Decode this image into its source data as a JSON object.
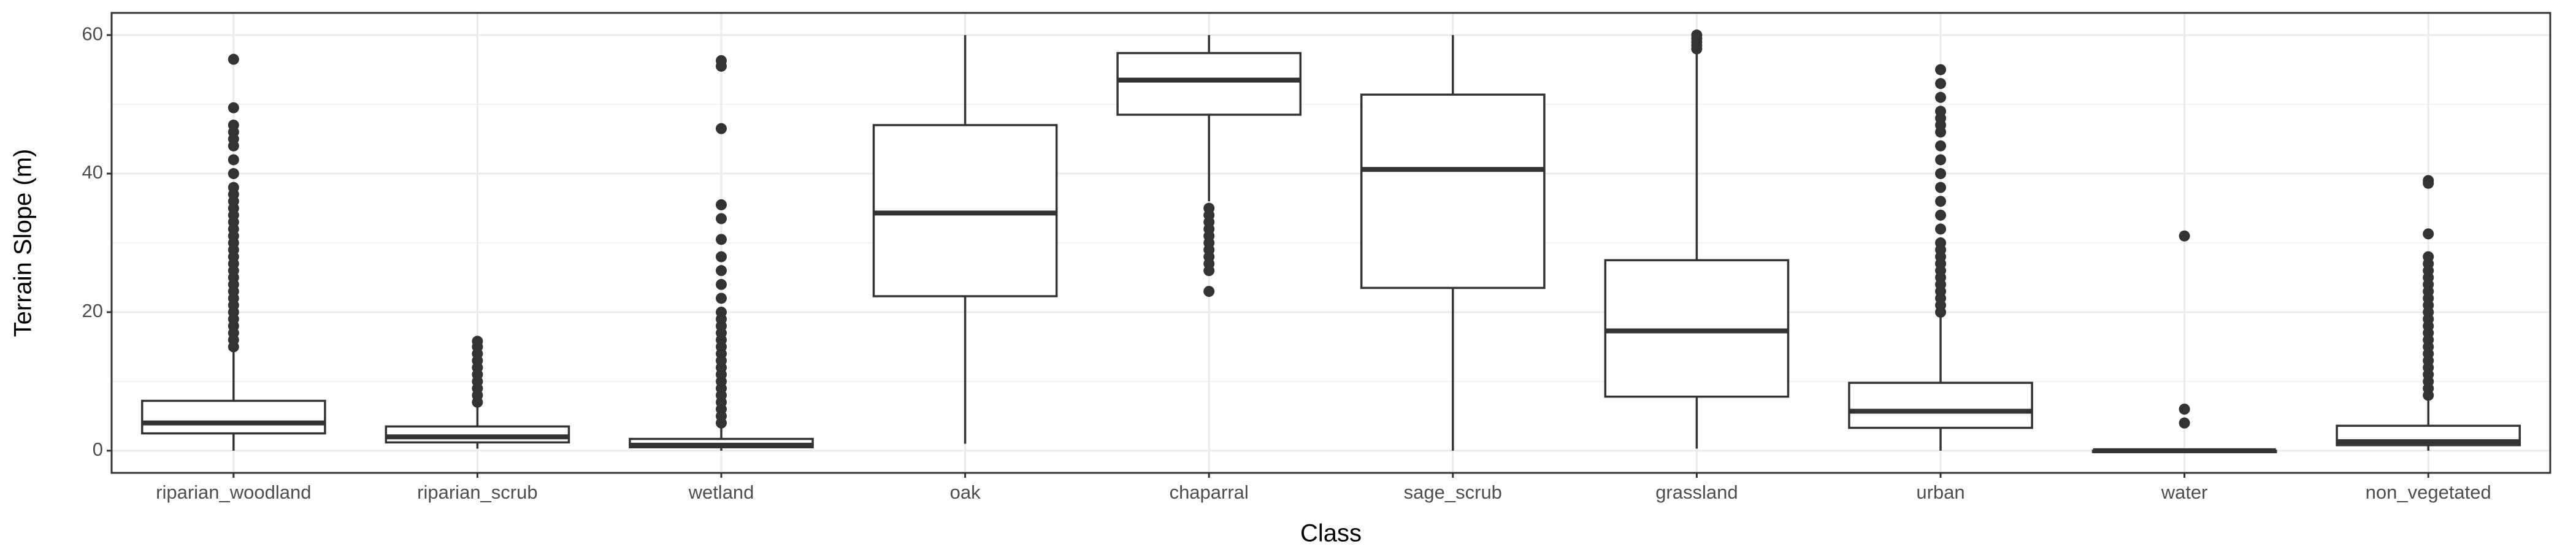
{
  "chart_data": {
    "type": "box",
    "x_label": "Class",
    "y_label": "Terrain Slope (m)",
    "categories": [
      "riparian_woodland",
      "riparian_scrub",
      "wetland",
      "oak",
      "chaparral",
      "sage_scrub",
      "grassland",
      "urban",
      "water",
      "non_vegetated"
    ],
    "boxes": [
      {
        "whislo": 0,
        "q1": 2.5,
        "med": 4,
        "q3": 7.2,
        "whishi": 14.5,
        "fliers": [
          15,
          16,
          17,
          18,
          19,
          20,
          21,
          22,
          23,
          24,
          25,
          26,
          27,
          28,
          29,
          30,
          31,
          32,
          33,
          34,
          35,
          36,
          37,
          38,
          40,
          42,
          44,
          45,
          46,
          47,
          49.5,
          56.5
        ]
      },
      {
        "whislo": 0.3,
        "q1": 1.2,
        "med": 2,
        "q3": 3.5,
        "whishi": 6.8,
        "fliers": [
          7,
          8,
          9,
          10,
          11,
          12,
          13,
          14,
          15,
          15.8
        ]
      },
      {
        "whislo": 0,
        "q1": 0.5,
        "med": 0.8,
        "q3": 1.7,
        "whishi": 3.5,
        "fliers": [
          4,
          5,
          6,
          7,
          8,
          9,
          10,
          11,
          12,
          13,
          14,
          15,
          16,
          17,
          18,
          19,
          20,
          22,
          24,
          26,
          28,
          30.5,
          33.5,
          35.5,
          46.5,
          55.5,
          56.3
        ]
      },
      {
        "whislo": 1,
        "q1": 22.3,
        "med": 34.3,
        "q3": 47,
        "whishi": 60,
        "fliers": []
      },
      {
        "whislo": 36,
        "q1": 48.5,
        "med": 53.5,
        "q3": 57.4,
        "whishi": 60,
        "fliers": [
          35,
          34,
          33,
          32,
          31,
          30,
          29,
          28,
          27,
          26,
          23
        ]
      },
      {
        "whislo": 0,
        "q1": 23.5,
        "med": 40.6,
        "q3": 51.4,
        "whishi": 60,
        "fliers": []
      },
      {
        "whislo": 0.3,
        "q1": 7.8,
        "med": 17.3,
        "q3": 27.5,
        "whishi": 57.3,
        "fliers": [
          58,
          58.5,
          59,
          59.5,
          60
        ]
      },
      {
        "whislo": 0,
        "q1": 3.3,
        "med": 5.7,
        "q3": 9.8,
        "whishi": 19.5,
        "fliers": [
          20,
          21,
          22,
          23,
          24,
          25,
          26,
          27,
          28,
          29,
          30,
          32,
          34,
          36,
          38,
          40,
          42,
          44,
          46,
          47,
          48,
          49,
          51,
          53,
          55
        ]
      },
      {
        "whislo": -0.3,
        "q1": -0.2,
        "med": 0,
        "q3": 0,
        "whishi": 0.2,
        "fliers": [
          4,
          6,
          31
        ]
      },
      {
        "whislo": 0,
        "q1": 0.8,
        "med": 1.3,
        "q3": 3.6,
        "whishi": 7.5,
        "fliers": [
          8,
          9,
          10,
          11,
          12,
          13,
          14,
          15,
          16,
          17,
          18,
          19,
          20,
          21,
          22,
          23,
          24,
          25,
          26,
          27,
          28,
          31.3,
          38.6,
          39
        ]
      }
    ],
    "color": "#333333",
    "ylim": [
      -3.2,
      63.2
    ],
    "yticks": [
      0,
      20,
      40,
      60
    ],
    "minor_yticks": [
      10,
      30,
      50
    ],
    "grid": true
  }
}
